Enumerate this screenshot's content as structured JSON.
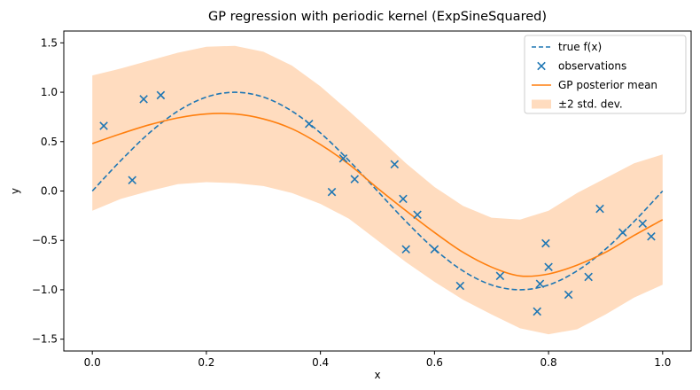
{
  "chart_data": {
    "type": "line",
    "title": "GP regression with periodic kernel (ExpSineSquared)",
    "xlabel": "x",
    "ylabel": "y",
    "xlim": [
      -0.05,
      1.05
    ],
    "ylim": [
      -1.62,
      1.62
    ],
    "xticks": [
      0.0,
      0.2,
      0.4,
      0.6,
      0.8,
      1.0
    ],
    "xtick_labels": [
      "0.0",
      "0.2",
      "0.4",
      "0.6",
      "0.8",
      "1.0"
    ],
    "yticks": [
      -1.5,
      -1.0,
      -0.5,
      0.0,
      0.5,
      1.0,
      1.5
    ],
    "ytick_labels": [
      "−1.5",
      "−1.0",
      "−0.5",
      "0.0",
      "0.5",
      "1.0",
      "1.5"
    ],
    "grid": false,
    "legend_position": "top-right",
    "colors": {
      "true_curve": "#1f77b4",
      "observations": "#1f77b4",
      "posterior_mean": "#ff7f0e",
      "band": "#ffdcbf"
    },
    "series": [
      {
        "name": "true f(x)",
        "kind": "line",
        "style": "dashed",
        "x": [
          0.0,
          0.05,
          0.1,
          0.15,
          0.2,
          0.25,
          0.3,
          0.35,
          0.4,
          0.45,
          0.5,
          0.55,
          0.6,
          0.65,
          0.7,
          0.75,
          0.8,
          0.85,
          0.9,
          0.95,
          1.0
        ],
        "y": [
          0.0,
          0.309,
          0.588,
          0.809,
          0.951,
          1.0,
          0.951,
          0.809,
          0.588,
          0.309,
          0.0,
          -0.309,
          -0.588,
          -0.809,
          -0.951,
          -1.0,
          -0.951,
          -0.809,
          -0.588,
          -0.309,
          0.0
        ]
      },
      {
        "name": "observations",
        "kind": "scatter",
        "marker": "x",
        "x": [
          0.02,
          0.07,
          0.09,
          0.12,
          0.38,
          0.42,
          0.44,
          0.46,
          0.53,
          0.545,
          0.55,
          0.57,
          0.6,
          0.645,
          0.715,
          0.78,
          0.785,
          0.795,
          0.8,
          0.835,
          0.87,
          0.89,
          0.93,
          0.965,
          0.98
        ],
        "y": [
          0.66,
          0.11,
          0.93,
          0.97,
          0.68,
          -0.01,
          0.33,
          0.12,
          0.27,
          -0.08,
          -0.59,
          -0.24,
          -0.59,
          -0.96,
          -0.86,
          -1.22,
          -0.94,
          -0.53,
          -0.77,
          -1.05,
          -0.87,
          -0.18,
          -0.42,
          -0.33,
          -0.46
        ]
      },
      {
        "name": "GP posterior mean",
        "kind": "line",
        "style": "solid",
        "x": [
          0.0,
          0.05,
          0.1,
          0.15,
          0.2,
          0.25,
          0.3,
          0.35,
          0.4,
          0.45,
          0.5,
          0.55,
          0.6,
          0.65,
          0.7,
          0.75,
          0.8,
          0.85,
          0.9,
          0.95,
          1.0
        ],
        "y": [
          0.48,
          0.58,
          0.67,
          0.74,
          0.78,
          0.78,
          0.73,
          0.63,
          0.47,
          0.27,
          0.03,
          -0.2,
          -0.42,
          -0.62,
          -0.77,
          -0.86,
          -0.84,
          -0.75,
          -0.62,
          -0.45,
          -0.29
        ]
      },
      {
        "name": "±2 std. dev.",
        "kind": "band",
        "x": [
          0.0,
          0.05,
          0.1,
          0.15,
          0.2,
          0.25,
          0.3,
          0.35,
          0.4,
          0.45,
          0.5,
          0.55,
          0.6,
          0.65,
          0.7,
          0.75,
          0.8,
          0.85,
          0.9,
          0.95,
          1.0
        ],
        "upper": [
          1.17,
          1.24,
          1.32,
          1.4,
          1.46,
          1.47,
          1.41,
          1.27,
          1.06,
          0.81,
          0.55,
          0.28,
          0.04,
          -0.15,
          -0.27,
          -0.29,
          -0.2,
          -0.02,
          0.13,
          0.28,
          0.37
        ],
        "lower": [
          -0.2,
          -0.08,
          0.0,
          0.07,
          0.09,
          0.08,
          0.05,
          -0.02,
          -0.13,
          -0.28,
          -0.5,
          -0.72,
          -0.92,
          -1.1,
          -1.25,
          -1.39,
          -1.45,
          -1.4,
          -1.25,
          -1.08,
          -0.95
        ]
      }
    ]
  }
}
